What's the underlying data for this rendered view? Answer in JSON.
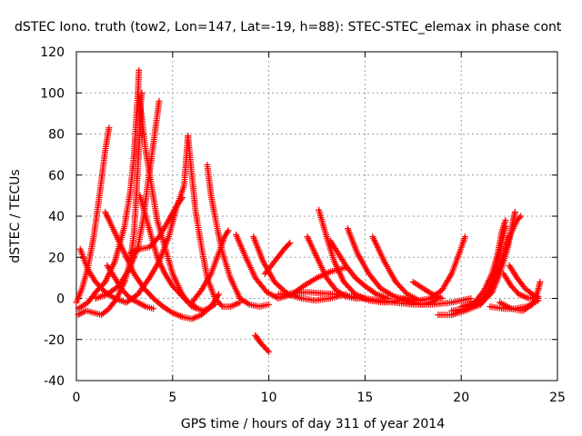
{
  "chart_data": {
    "type": "scatter",
    "title": "dSTEC Iono. truth (tow2, Lon=147, Lat=-19, h=88): STEC-STEC_elemax in phase cont",
    "xlabel": "GPS time / hours of day 311 of year 2014",
    "ylabel": "dSTEC  / TECUs",
    "xlim": [
      0,
      25
    ],
    "ylim": [
      -40,
      120
    ],
    "xticks": [
      "0",
      "5",
      "10",
      "15",
      "20",
      "25"
    ],
    "yticks": [
      "-40",
      "-20",
      "0",
      "20",
      "40",
      "60",
      "80",
      "100",
      "120"
    ],
    "grid": true,
    "marker": "plus",
    "color": "#ff0000",
    "series": [
      {
        "points": [
          [
            0.0,
            -2
          ],
          [
            0.3,
            5
          ],
          [
            0.6,
            15
          ],
          [
            0.9,
            30
          ],
          [
            1.2,
            50
          ],
          [
            1.5,
            72
          ],
          [
            1.7,
            83
          ]
        ]
      },
      {
        "points": [
          [
            0.1,
            -8
          ],
          [
            0.5,
            -6
          ],
          [
            0.9,
            -7
          ],
          [
            1.3,
            -8
          ],
          [
            1.7,
            -5
          ],
          [
            2.1,
            0
          ],
          [
            2.5,
            8
          ],
          [
            2.8,
            18
          ],
          [
            3.0,
            32
          ],
          [
            3.1,
            48
          ],
          [
            3.2,
            65
          ],
          [
            3.3,
            82
          ],
          [
            3.35,
            96
          ],
          [
            3.4,
            100
          ]
        ]
      },
      {
        "points": [
          [
            0.1,
            -5
          ],
          [
            0.6,
            -2
          ],
          [
            1.0,
            3
          ],
          [
            1.5,
            8
          ],
          [
            2.0,
            18
          ],
          [
            2.5,
            35
          ],
          [
            2.8,
            52
          ],
          [
            3.0,
            70
          ],
          [
            3.1,
            86
          ],
          [
            3.2,
            100
          ],
          [
            3.25,
            111
          ]
        ]
      },
      {
        "points": [
          [
            1.0,
            0
          ],
          [
            1.6,
            2
          ],
          [
            2.2,
            6
          ],
          [
            2.8,
            15
          ],
          [
            3.2,
            25
          ],
          [
            3.5,
            40
          ],
          [
            3.7,
            55
          ],
          [
            3.9,
            68
          ],
          [
            4.1,
            82
          ],
          [
            4.3,
            96
          ]
        ]
      },
      {
        "points": [
          [
            3.2,
            100
          ],
          [
            3.4,
            88
          ],
          [
            3.6,
            72
          ],
          [
            3.9,
            55
          ],
          [
            4.2,
            38
          ],
          [
            4.6,
            25
          ],
          [
            5.0,
            12
          ],
          [
            5.5,
            2
          ],
          [
            6.0,
            -4
          ],
          [
            6.6,
            -6
          ],
          [
            7.2,
            -3
          ]
        ]
      },
      {
        "points": [
          [
            0.2,
            24
          ],
          [
            0.6,
            14
          ],
          [
            1.0,
            8
          ],
          [
            1.5,
            3
          ],
          [
            2.0,
            0
          ],
          [
            2.6,
            -2
          ],
          [
            3.2,
            2
          ],
          [
            3.8,
            10
          ],
          [
            4.3,
            18
          ],
          [
            4.8,
            30
          ],
          [
            5.2,
            44
          ],
          [
            5.6,
            55
          ],
          [
            5.8,
            79
          ]
        ]
      },
      {
        "points": [
          [
            1.5,
            42
          ],
          [
            2.0,
            32
          ],
          [
            2.5,
            22
          ],
          [
            3.0,
            12
          ],
          [
            3.5,
            5
          ],
          [
            4.0,
            0
          ],
          [
            4.5,
            -4
          ],
          [
            5.0,
            -7
          ],
          [
            5.5,
            -9
          ],
          [
            6.0,
            -10
          ],
          [
            6.5,
            -8
          ],
          [
            7.0,
            -4
          ],
          [
            7.4,
            2
          ]
        ]
      },
      {
        "points": [
          [
            3.3,
            50
          ],
          [
            3.6,
            40
          ],
          [
            3.9,
            30
          ],
          [
            4.2,
            20
          ],
          [
            4.6,
            12
          ],
          [
            5.0,
            6
          ],
          [
            5.4,
            2
          ],
          [
            5.8,
            -2
          ],
          [
            6.2,
            -4
          ]
        ]
      },
      {
        "points": [
          [
            2.8,
            22
          ],
          [
            3.3,
            24
          ],
          [
            3.8,
            25
          ],
          [
            4.3,
            30
          ],
          [
            4.8,
            38
          ],
          [
            5.2,
            45
          ],
          [
            5.5,
            49
          ]
        ]
      },
      {
        "points": [
          [
            1.6,
            16
          ],
          [
            2.0,
            10
          ],
          [
            2.4,
            4
          ],
          [
            2.8,
            0
          ],
          [
            3.2,
            -2
          ],
          [
            3.6,
            -4
          ],
          [
            4.0,
            -5
          ]
        ]
      },
      {
        "points": [
          [
            5.8,
            79
          ],
          [
            6.0,
            60
          ],
          [
            6.2,
            42
          ],
          [
            6.5,
            25
          ],
          [
            6.8,
            10
          ],
          [
            7.2,
            0
          ],
          [
            7.6,
            -4
          ],
          [
            8.0,
            -4
          ],
          [
            8.5,
            -2
          ]
        ]
      },
      {
        "points": [
          [
            6.8,
            65
          ],
          [
            7.0,
            50
          ],
          [
            7.3,
            35
          ],
          [
            7.6,
            22
          ],
          [
            8.0,
            10
          ],
          [
            8.5,
            0
          ],
          [
            9.0,
            -3
          ],
          [
            9.5,
            -4
          ],
          [
            10.0,
            -3
          ]
        ]
      },
      {
        "points": [
          [
            6.0,
            -2
          ],
          [
            6.5,
            4
          ],
          [
            7.0,
            12
          ],
          [
            7.4,
            22
          ],
          [
            7.7,
            30
          ],
          [
            7.9,
            33
          ]
        ]
      },
      {
        "points": [
          [
            8.3,
            31
          ],
          [
            8.8,
            20
          ],
          [
            9.3,
            10
          ],
          [
            9.9,
            3
          ],
          [
            10.5,
            0
          ],
          [
            11.2,
            2
          ],
          [
            11.8,
            6
          ],
          [
            12.5,
            10
          ],
          [
            13.2,
            13
          ],
          [
            14.0,
            15
          ]
        ]
      },
      {
        "points": [
          [
            9.2,
            30
          ],
          [
            9.7,
            18
          ],
          [
            10.3,
            8
          ],
          [
            11.0,
            2
          ],
          [
            11.7,
            0
          ],
          [
            12.4,
            -1
          ],
          [
            13.2,
            0
          ],
          [
            14.0,
            2
          ]
        ]
      },
      {
        "points": [
          [
            9.3,
            -18
          ],
          [
            9.6,
            -22
          ],
          [
            10.0,
            -26
          ]
        ]
      },
      {
        "points": [
          [
            9.8,
            12
          ],
          [
            10.3,
            18
          ],
          [
            10.8,
            24
          ],
          [
            11.1,
            27
          ]
        ]
      },
      {
        "points": [
          [
            12.0,
            30
          ],
          [
            12.5,
            20
          ],
          [
            13.0,
            10
          ],
          [
            13.5,
            4
          ],
          [
            14.0,
            1
          ],
          [
            14.5,
            0
          ],
          [
            15.0,
            0
          ]
        ]
      },
      {
        "points": [
          [
            12.6,
            43
          ],
          [
            13.0,
            30
          ],
          [
            13.4,
            18
          ],
          [
            13.9,
            8
          ],
          [
            14.5,
            2
          ],
          [
            15.2,
            -1
          ],
          [
            16.0,
            -2
          ],
          [
            16.8,
            -1
          ]
        ]
      },
      {
        "points": [
          [
            13.2,
            28
          ],
          [
            13.6,
            22
          ],
          [
            14.0,
            16
          ],
          [
            14.5,
            10
          ],
          [
            15.0,
            6
          ],
          [
            15.6,
            2
          ],
          [
            16.2,
            0
          ]
        ]
      },
      {
        "points": [
          [
            14.1,
            34
          ],
          [
            14.6,
            22
          ],
          [
            15.2,
            12
          ],
          [
            15.8,
            5
          ],
          [
            16.5,
            1
          ],
          [
            17.2,
            -1
          ],
          [
            18.0,
            -1
          ]
        ]
      },
      {
        "points": [
          [
            15.4,
            30
          ],
          [
            16.0,
            18
          ],
          [
            16.6,
            8
          ],
          [
            17.2,
            2
          ],
          [
            17.8,
            -1
          ],
          [
            18.4,
            0
          ],
          [
            19.0,
            4
          ],
          [
            19.5,
            12
          ],
          [
            19.9,
            22
          ],
          [
            20.2,
            30
          ]
        ]
      },
      {
        "points": [
          [
            10.5,
            2
          ],
          [
            12.0,
            3
          ],
          [
            13.5,
            2
          ],
          [
            15.0,
            0
          ],
          [
            16.5,
            -2
          ],
          [
            17.5,
            -3
          ],
          [
            18.5,
            -3
          ],
          [
            19.5,
            -2
          ],
          [
            20.5,
            0
          ]
        ]
      },
      {
        "points": [
          [
            17.0,
            0
          ],
          [
            17.5,
            -2
          ],
          [
            18.0,
            -3
          ],
          [
            18.4,
            -2
          ],
          [
            18.8,
            0
          ]
        ]
      },
      {
        "points": [
          [
            17.5,
            8
          ],
          [
            18.0,
            5
          ],
          [
            18.5,
            2
          ],
          [
            19.0,
            0
          ]
        ]
      },
      {
        "points": [
          [
            18.8,
            -8
          ],
          [
            19.5,
            -8
          ],
          [
            20.2,
            -6
          ],
          [
            21.0,
            -3
          ],
          [
            21.6,
            3
          ],
          [
            22.0,
            12
          ],
          [
            22.4,
            24
          ],
          [
            22.7,
            38
          ],
          [
            22.8,
            42
          ]
        ]
      },
      {
        "points": [
          [
            19.5,
            -6
          ],
          [
            20.2,
            -5
          ],
          [
            21.0,
            -2
          ],
          [
            21.5,
            5
          ],
          [
            21.8,
            14
          ],
          [
            22.1,
            26
          ],
          [
            22.3,
            35
          ]
        ]
      },
      {
        "points": [
          [
            20.0,
            -4
          ],
          [
            20.7,
            -2
          ],
          [
            21.2,
            4
          ],
          [
            21.6,
            12
          ],
          [
            21.9,
            22
          ],
          [
            22.1,
            32
          ],
          [
            22.3,
            38
          ]
        ]
      },
      {
        "points": [
          [
            20.5,
            -3
          ],
          [
            21.2,
            0
          ],
          [
            21.7,
            8
          ],
          [
            22.1,
            18
          ],
          [
            22.5,
            30
          ],
          [
            22.9,
            38
          ],
          [
            23.1,
            40
          ]
        ]
      },
      {
        "points": [
          [
            22.2,
            12
          ],
          [
            22.6,
            6
          ],
          [
            23.0,
            2
          ],
          [
            23.5,
            0
          ],
          [
            24.0,
            1
          ]
        ]
      },
      {
        "points": [
          [
            21.5,
            -4
          ],
          [
            22.2,
            -5
          ],
          [
            22.8,
            -5
          ],
          [
            23.4,
            -4
          ],
          [
            24.0,
            -1
          ]
        ]
      },
      {
        "points": [
          [
            22.0,
            -2
          ],
          [
            22.6,
            -5
          ],
          [
            23.2,
            -6
          ],
          [
            23.7,
            -3
          ],
          [
            24.0,
            4
          ],
          [
            24.1,
            8
          ]
        ]
      },
      {
        "points": [
          [
            22.5,
            16
          ],
          [
            22.9,
            10
          ],
          [
            23.3,
            5
          ],
          [
            23.7,
            2
          ],
          [
            24.0,
            0
          ]
        ]
      }
    ]
  }
}
